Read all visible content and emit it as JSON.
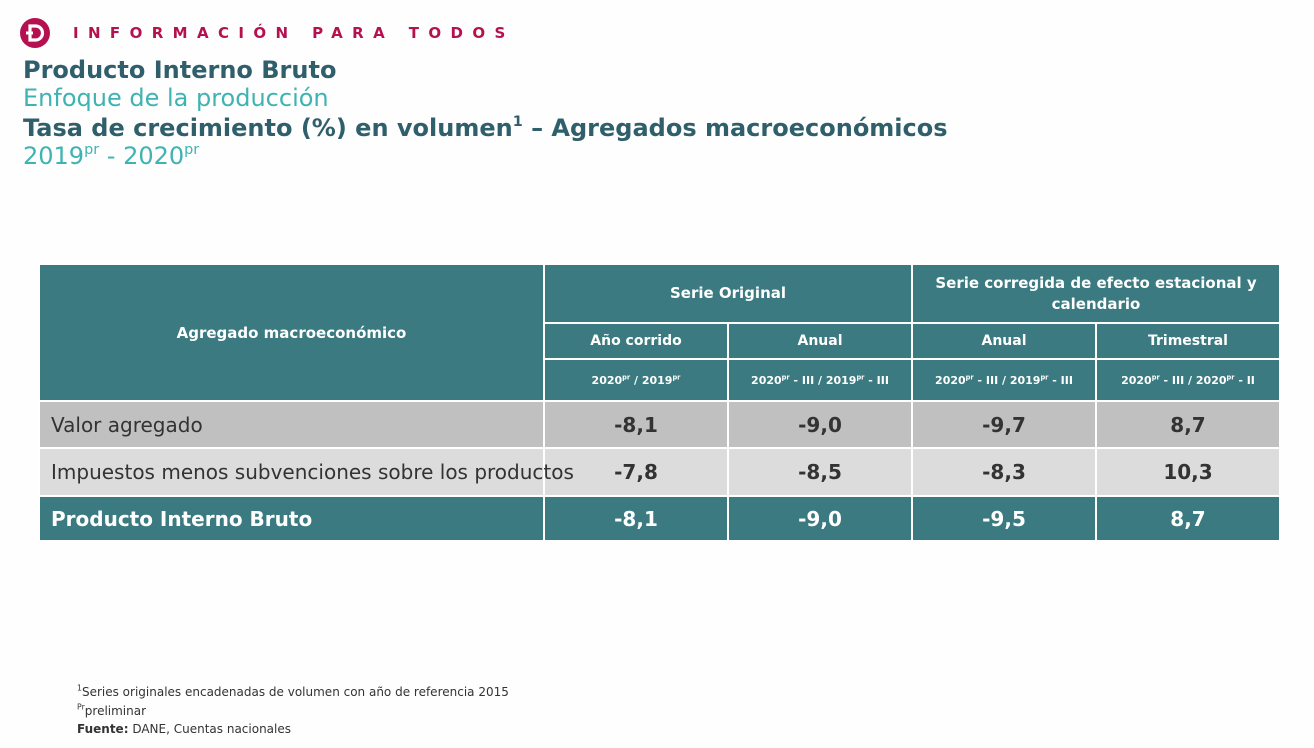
{
  "header": {
    "logo_letter": "D",
    "tagline": "INFORMACIÓN PARA TODOS",
    "brand_color": "#b5104f"
  },
  "titles": {
    "title": "Producto Interno Bruto",
    "subtitle": "Enfoque de la producción",
    "heading_main": "Tasa de crecimiento (%) en volumen",
    "heading_sup": "1",
    "heading_rest": " – Agregados macroeconómicos",
    "period_start": "2019",
    "period_start_sup": "pr",
    "period_sep": " - ",
    "period_end": "2020",
    "period_end_sup": "pr"
  },
  "table": {
    "col_agregado": "Agregado macroeconómico",
    "group_original": "Serie Original",
    "group_corregida": "Serie corregida de efecto estacional y calendario",
    "subheaders": [
      "Año corrido",
      "Anual",
      "Anual",
      "Trimestral"
    ],
    "periods": [
      {
        "a": "2020",
        "a_sup": "pr",
        "mid": " / 2019",
        "b_sup": "pr",
        "end": ""
      },
      {
        "a": "2020",
        "a_sup": "pr",
        "mid": " - III / 2019",
        "b_sup": "pr",
        "end": " - III"
      },
      {
        "a": "2020",
        "a_sup": "pr",
        "mid": " - III / 2019",
        "b_sup": "pr",
        "end": " - III"
      },
      {
        "a": "2020",
        "a_sup": "pr",
        "mid": " - III / 2020",
        "b_sup": "pr",
        "end": " - II"
      }
    ],
    "rows": [
      {
        "label": "Valor agregado",
        "values": [
          "-8,1",
          "-9,0",
          "-9,7",
          "8,7"
        ]
      },
      {
        "label": "Impuestos menos subvenciones sobre los productos",
        "values": [
          "-7,8",
          "-8,5",
          "-8,3",
          "10,3"
        ]
      },
      {
        "label": "Producto Interno Bruto",
        "values": [
          "-8,1",
          "-9,0",
          "-9,5",
          "8,7"
        ]
      }
    ],
    "header_color": "#3a7a80"
  },
  "notes": {
    "note1_sup": "1",
    "note1": "Series originales encadenadas de volumen con año de referencia 2015",
    "note2_sup": "Pr",
    "note2": "preliminar",
    "source_label": "Fuente:",
    "source_text": " DANE, Cuentas nacionales"
  }
}
